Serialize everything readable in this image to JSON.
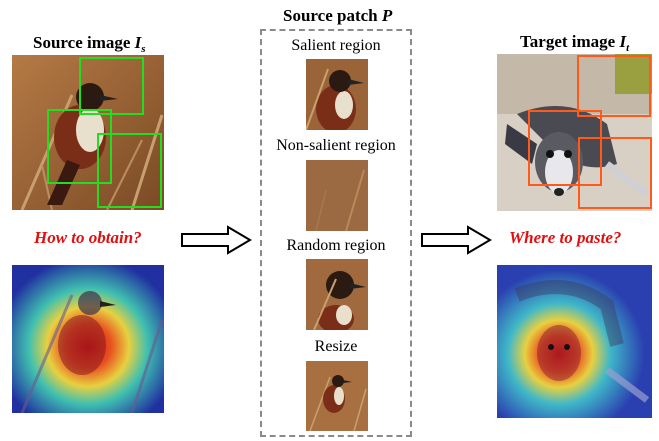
{
  "source_image": {
    "title": "Source image ",
    "title_var": "I",
    "title_sub": "s"
  },
  "source_patch": {
    "title": "Source patch ",
    "title_var": "P",
    "options": [
      {
        "label": "Salient region"
      },
      {
        "label": "Non-salient region"
      },
      {
        "label": "Random region"
      },
      {
        "label": "Resize"
      }
    ]
  },
  "target_image": {
    "title": "Target image ",
    "title_var": "I",
    "title_sub": "t"
  },
  "questions": {
    "obtain": "How to obtain?",
    "paste": "Where to paste?"
  },
  "colors": {
    "question": "#e01010",
    "source_boxes": "#22dd22",
    "target_boxes": "#ff5a1a",
    "panel_border": "#8a8a8a"
  }
}
